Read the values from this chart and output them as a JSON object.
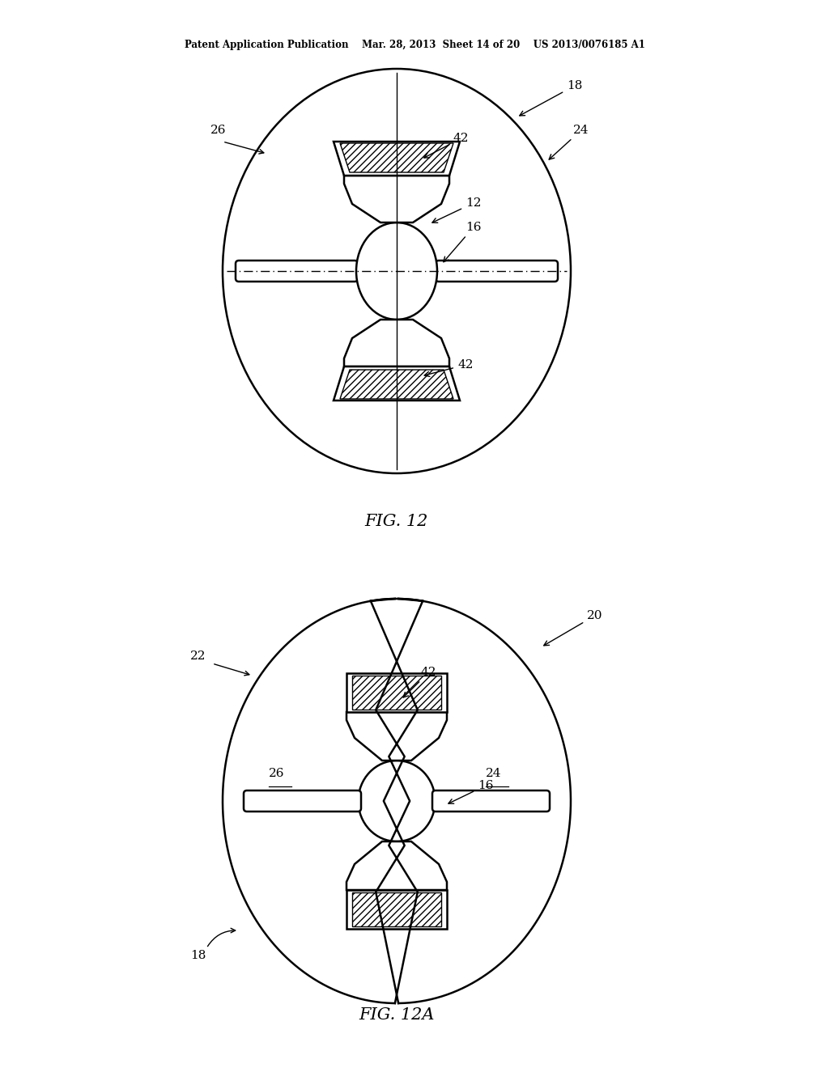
{
  "bg_color": "#ffffff",
  "line_color": "#000000",
  "header_text": "Patent Application Publication    Mar. 28, 2013  Sheet 14 of 20    US 2013/0076185 A1",
  "fig12_label": "FIG. 12",
  "fig12a_label": "FIG. 12A"
}
